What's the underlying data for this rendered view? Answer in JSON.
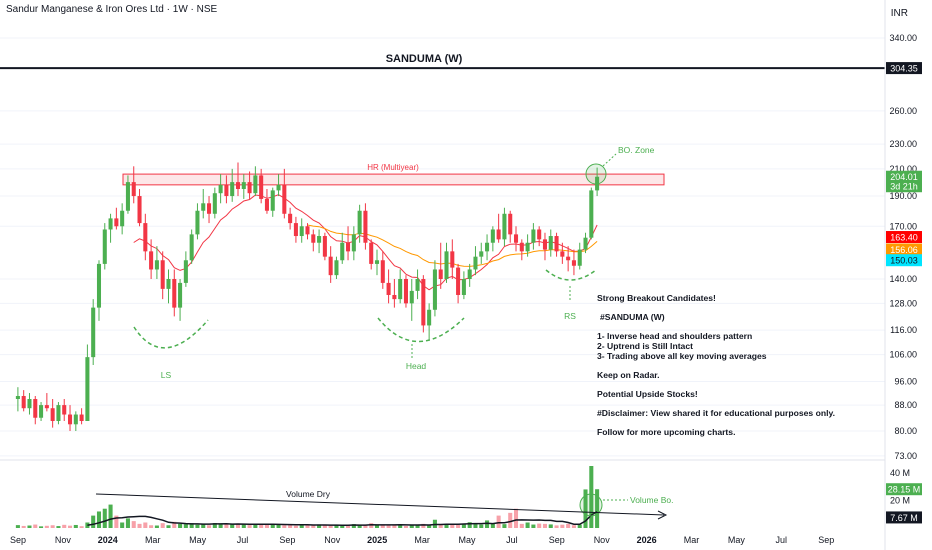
{
  "header": {
    "title": "Sandur Manganese & Iron Ores Ltd · 1W · NSE",
    "currency": "INR",
    "chart_title": "SANDUMA (W)"
  },
  "axis": {
    "price_ticks": [
      "340.00",
      "260.00",
      "230.00",
      "210.00",
      "190.00",
      "170.00",
      "140.00",
      "128.00",
      "116.00",
      "106.00",
      "96.00",
      "88.00",
      "80.00",
      "73.00"
    ],
    "volume_ticks": [
      "40 M",
      "20 M"
    ],
    "time_ticks": [
      "Sep",
      "Nov",
      "2024",
      "Mar",
      "May",
      "Jul",
      "Sep",
      "Nov",
      "2025",
      "Mar",
      "May",
      "Jul",
      "Sep",
      "Nov",
      "2026",
      "Mar",
      "May",
      "Jul",
      "Sep"
    ]
  },
  "price_labels": [
    {
      "text": "304.35",
      "color": "#131722",
      "text_color": "#ffffff",
      "value": 304.35
    },
    {
      "text": "204.01",
      "color": "#4caf50",
      "text_color": "#ffffff",
      "value": 204.01
    },
    {
      "text": "3d 21h",
      "color": "#4caf50",
      "text_color": "#ffffff",
      "value": 197
    },
    {
      "text": "163.40",
      "color": "#ff0000",
      "text_color": "#ffffff",
      "value": 163.4
    },
    {
      "text": "156.06",
      "color": "#ff9800",
      "text_color": "#ffffff",
      "value": 156.06
    },
    {
      "text": "150.03",
      "color": "#00e5ff",
      "text_color": "#131722",
      "value": 150.03
    }
  ],
  "volume_labels": [
    {
      "text": "28.15 M",
      "color": "#4caf50",
      "text_color": "#ffffff",
      "value": 28.15
    },
    {
      "text": "7.67 M",
      "color": "#131722",
      "text_color": "#ffffff",
      "value": 7.67
    }
  ],
  "annotations": {
    "resistance": "HR (Multiyear)",
    "bo_zone": "BO. Zone",
    "ls": "LS",
    "head": "Head",
    "rs": "RS",
    "volume_dry": "Volume Dry",
    "volume_bo": "Volume Bo."
  },
  "notes": {
    "line1": "Strong Breakout Candidates!",
    "line2": "#SANDUMA (W)",
    "line3": "1- Inverse head and shoulders pattern",
    "line4": "2- Uptrend is Still Intact",
    "line5": "3- Trading above all key moving averages",
    "line6": "Keep on Radar.",
    "line7": "Potential Upside Stocks!",
    "line8": "#Disclaimer: View shared it for educational purposes only.",
    "line9": "Follow for more upcoming charts."
  },
  "colors": {
    "up": "#4caf50",
    "down": "#f23645",
    "vol_up": "#4caf50",
    "vol_down": "#f7a1a9",
    "ema_short": "#f23645",
    "ema_long": "#ff9800",
    "annotation": "#4caf50"
  },
  "chart_data": {
    "type": "candlestick",
    "symbol": "SANDUMA",
    "timeframe": "1W",
    "resistance_zone": [
      198,
      206
    ],
    "horizontal_line": 304.35,
    "last_close": 204.01,
    "ohlc_weekly": [
      [
        90,
        94,
        86,
        91
      ],
      [
        91,
        93,
        86,
        87
      ],
      [
        87,
        92,
        85,
        90
      ],
      [
        90,
        91,
        82,
        84
      ],
      [
        84,
        89,
        83,
        88
      ],
      [
        88,
        92,
        86,
        87
      ],
      [
        87,
        90,
        81,
        83
      ],
      [
        83,
        89,
        82,
        88
      ],
      [
        88,
        90,
        83,
        85
      ],
      [
        85,
        88,
        80,
        82
      ],
      [
        82,
        86,
        80,
        85
      ],
      [
        85,
        87,
        82,
        83
      ],
      [
        83,
        110,
        83,
        105
      ],
      [
        105,
        130,
        102,
        126
      ],
      [
        126,
        150,
        120,
        148
      ],
      [
        148,
        172,
        145,
        168
      ],
      [
        168,
        178,
        160,
        175
      ],
      [
        175,
        182,
        168,
        170
      ],
      [
        170,
        185,
        165,
        180
      ],
      [
        180,
        205,
        178,
        200
      ],
      [
        200,
        212,
        185,
        190
      ],
      [
        190,
        195,
        170,
        172
      ],
      [
        172,
        178,
        150,
        155
      ],
      [
        155,
        162,
        140,
        145
      ],
      [
        145,
        158,
        140,
        150
      ],
      [
        150,
        155,
        130,
        135
      ],
      [
        135,
        145,
        128,
        140
      ],
      [
        140,
        145,
        122,
        126
      ],
      [
        126,
        140,
        120,
        138
      ],
      [
        138,
        155,
        136,
        150
      ],
      [
        150,
        168,
        148,
        165
      ],
      [
        165,
        185,
        162,
        180
      ],
      [
        180,
        195,
        175,
        185
      ],
      [
        185,
        190,
        172,
        178
      ],
      [
        178,
        196,
        175,
        192
      ],
      [
        192,
        206,
        185,
        198
      ],
      [
        198,
        205,
        185,
        190
      ],
      [
        190,
        210,
        186,
        200
      ],
      [
        200,
        215,
        190,
        195
      ],
      [
        195,
        206,
        188,
        200
      ],
      [
        200,
        208,
        188,
        192
      ],
      [
        192,
        212,
        190,
        205
      ],
      [
        205,
        210,
        185,
        188
      ],
      [
        188,
        195,
        178,
        180
      ],
      [
        180,
        196,
        176,
        194
      ],
      [
        194,
        206,
        190,
        198
      ],
      [
        198,
        210,
        175,
        178
      ],
      [
        178,
        182,
        168,
        172
      ],
      [
        172,
        176,
        160,
        164
      ],
      [
        164,
        175,
        160,
        170
      ],
      [
        170,
        172,
        162,
        165
      ],
      [
        165,
        168,
        155,
        160
      ],
      [
        160,
        168,
        154,
        164
      ],
      [
        164,
        166,
        150,
        152
      ],
      [
        152,
        158,
        138,
        142
      ],
      [
        142,
        152,
        140,
        150
      ],
      [
        150,
        166,
        148,
        160
      ],
      [
        160,
        170,
        150,
        155
      ],
      [
        155,
        170,
        150,
        165
      ],
      [
        165,
        184,
        160,
        180
      ],
      [
        180,
        185,
        156,
        160
      ],
      [
        160,
        162,
        145,
        148
      ],
      [
        148,
        156,
        142,
        150
      ],
      [
        150,
        155,
        135,
        138
      ],
      [
        138,
        145,
        128,
        132
      ],
      [
        132,
        140,
        126,
        130
      ],
      [
        130,
        145,
        128,
        140
      ],
      [
        140,
        142,
        126,
        128
      ],
      [
        128,
        140,
        120,
        134
      ],
      [
        134,
        145,
        130,
        140
      ],
      [
        140,
        142,
        115,
        118
      ],
      [
        118,
        128,
        112,
        125
      ],
      [
        125,
        150,
        122,
        145
      ],
      [
        145,
        160,
        135,
        140
      ],
      [
        140,
        160,
        138,
        155
      ],
      [
        155,
        162,
        140,
        146
      ],
      [
        146,
        148,
        128,
        132
      ],
      [
        132,
        144,
        130,
        140
      ],
      [
        140,
        148,
        136,
        145
      ],
      [
        145,
        158,
        142,
        152
      ],
      [
        152,
        160,
        148,
        155
      ],
      [
        155,
        165,
        150,
        160
      ],
      [
        160,
        170,
        155,
        168
      ],
      [
        168,
        178,
        160,
        162
      ],
      [
        162,
        182,
        158,
        178
      ],
      [
        178,
        180,
        160,
        165
      ],
      [
        165,
        170,
        155,
        160
      ],
      [
        160,
        162,
        150,
        155
      ],
      [
        155,
        165,
        152,
        160
      ],
      [
        160,
        172,
        156,
        168
      ],
      [
        168,
        170,
        158,
        162
      ],
      [
        162,
        166,
        150,
        156
      ],
      [
        156,
        168,
        152,
        164
      ],
      [
        164,
        166,
        152,
        155
      ],
      [
        155,
        160,
        148,
        152
      ],
      [
        152,
        158,
        144,
        150
      ],
      [
        150,
        156,
        142,
        147
      ],
      [
        147,
        160,
        145,
        156
      ],
      [
        156,
        166,
        154,
        163
      ],
      [
        163,
        196,
        162,
        194
      ],
      [
        194,
        211,
        190,
        204
      ]
    ],
    "volume_millions": [
      2.1,
      1.5,
      1.8,
      2.5,
      1.2,
      1.6,
      2.0,
      1.4,
      2.3,
      1.7,
      2.2,
      1.3,
      4.0,
      9.0,
      12.0,
      14.0,
      17.0,
      9.0,
      4.0,
      7.0,
      5.0,
      3.0,
      4.0,
      2.0,
      1.8,
      3.5,
      2.0,
      4.5,
      3.0,
      2.8,
      3.5,
      2.4,
      2.7,
      2.0,
      3.6,
      3.1,
      2.6,
      2.9,
      3.3,
      2.5,
      2.1,
      2.8,
      2.6,
      2.3,
      2.5,
      2.2,
      2.0,
      2.4,
      1.6,
      2.5,
      2.0,
      1.8,
      2.6,
      2.3,
      1.7,
      2.1,
      1.5,
      2.4,
      2.8,
      1.8,
      2.2,
      3.5,
      2.0,
      2.6,
      1.8,
      2.0,
      2.2,
      1.5,
      2.3,
      1.9,
      3.0,
      2.2,
      6.0,
      2.5,
      3.0,
      2.7,
      2.2,
      2.9,
      4.2,
      3.5,
      2.5,
      5.5,
      3.0,
      9.0,
      2.8,
      11.0,
      14.0,
      3.0,
      4.0,
      2.5,
      3.2,
      3.0,
      2.6,
      1.9,
      2.4,
      3.0,
      2.0,
      2.5,
      28.0,
      45.0,
      28.15
    ]
  }
}
